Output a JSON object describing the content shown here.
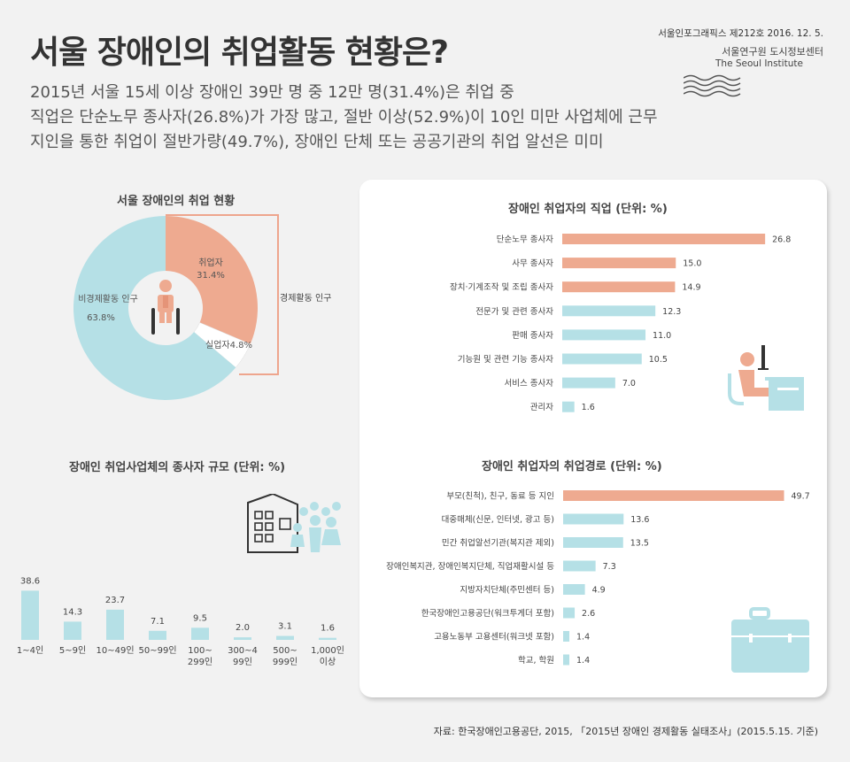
{
  "header": {
    "title": "서울 장애인의 취업활동 현황은?",
    "subtitles": [
      "2015년 서울 15세 이상 장애인 39만 명 중 12만 명(31.4%)은 취업 중",
      "직업은 단순노무 종사자(26.8%)가 가장 많고, 절반 이상(52.9%)이 10인 미만 사업체에 근무",
      "지인을 통한 취업이 절반가량(49.7%), 장애인 단체 또는 공공기관의 취업 알선은 미미"
    ],
    "publication_issue": "서울인포그래픽스 제212호 2016. 12. 5.",
    "publisher": "서울연구원 도시정보센터",
    "publisher_en": "The Seoul Institute"
  },
  "source": "자료: 한국장애인고용공단, 2015, 「2015년 장애인 경제활동 실태조사」(2015.5.15. 기준)",
  "colors": {
    "salmon": "#eeaa90",
    "blue": "#b5e0e6",
    "bracket": "#eea58d",
    "text": "#444444"
  },
  "icons": [
    "person-icon",
    "building-icon",
    "family-icon",
    "office-worker-icon",
    "briefcase-icon"
  ],
  "chart_data": [
    {
      "type": "pie",
      "title": "서울 장애인의 취업 현황",
      "categories": [
        "취업자",
        "실업자",
        "비경제활동 인구"
      ],
      "values": [
        31.4,
        4.8,
        63.8
      ],
      "labels": [
        "취업자\n31.4%",
        "실업자4.8%",
        "비경제활동 인구\n63.8%"
      ],
      "annotation": "경제활동 인구"
    },
    {
      "type": "bar",
      "title": "장애인 취업사업체의 종사자 규모 (단위: %)",
      "categories": [
        "1~4인",
        "5~9인",
        "10~49인",
        "50~99인",
        "100~\n299인",
        "300~4\n99인",
        "500~\n999인",
        "1,000인\n이상"
      ],
      "values": [
        38.6,
        14.3,
        23.7,
        7.1,
        9.5,
        2.0,
        3.1,
        1.6
      ],
      "value_labels": [
        "38.6",
        "14.3",
        "23.7",
        "7.1",
        "9.5",
        "2.0",
        "3.1",
        "1.6"
      ]
    },
    {
      "type": "bar",
      "orientation": "horizontal",
      "title": "장애인 취업자의 직업 (단위: %)",
      "categories": [
        "단순노무 종사자",
        "사무 종사자",
        "장치·기계조작 및 조립 종사자",
        "전문가 및 관련 종사자",
        "판매 종사자",
        "기능원 및 관련 기능 종사자",
        "서비스 종사자",
        "관리자"
      ],
      "values": [
        26.8,
        15.0,
        14.9,
        12.3,
        11.0,
        10.5,
        7.0,
        1.6
      ],
      "value_labels": [
        "26.8",
        "15.0",
        "14.9",
        "12.3",
        "11.0",
        "10.5",
        "7.0",
        "1.6"
      ],
      "highlighted": [
        true,
        true,
        true,
        false,
        false,
        false,
        false,
        false
      ]
    },
    {
      "type": "bar",
      "orientation": "horizontal",
      "title": "장애인 취업자의 취업경로 (단위: %)",
      "categories": [
        "부모(친척), 친구, 동료 등 지인",
        "대중매체(신문, 인터넷, 광고 등)",
        "민간 취업알선기관(복지관 제외)",
        "장애인복지관, 장애인복지단체, 직업재활시설 등",
        "지방자치단체(주민센터 등)",
        "한국장애인고용공단(워크투게더 포함)",
        "고용노동부 고용센터(워크넷 포함)",
        "학교, 학원"
      ],
      "values": [
        49.7,
        13.6,
        13.5,
        7.3,
        4.9,
        2.6,
        1.4,
        1.4
      ],
      "value_labels": [
        "49.7",
        "13.6",
        "13.5",
        "7.3",
        "4.9",
        "2.6",
        "1.4",
        "1.4"
      ],
      "highlighted": [
        true,
        false,
        false,
        false,
        false,
        false,
        false,
        false
      ]
    }
  ]
}
